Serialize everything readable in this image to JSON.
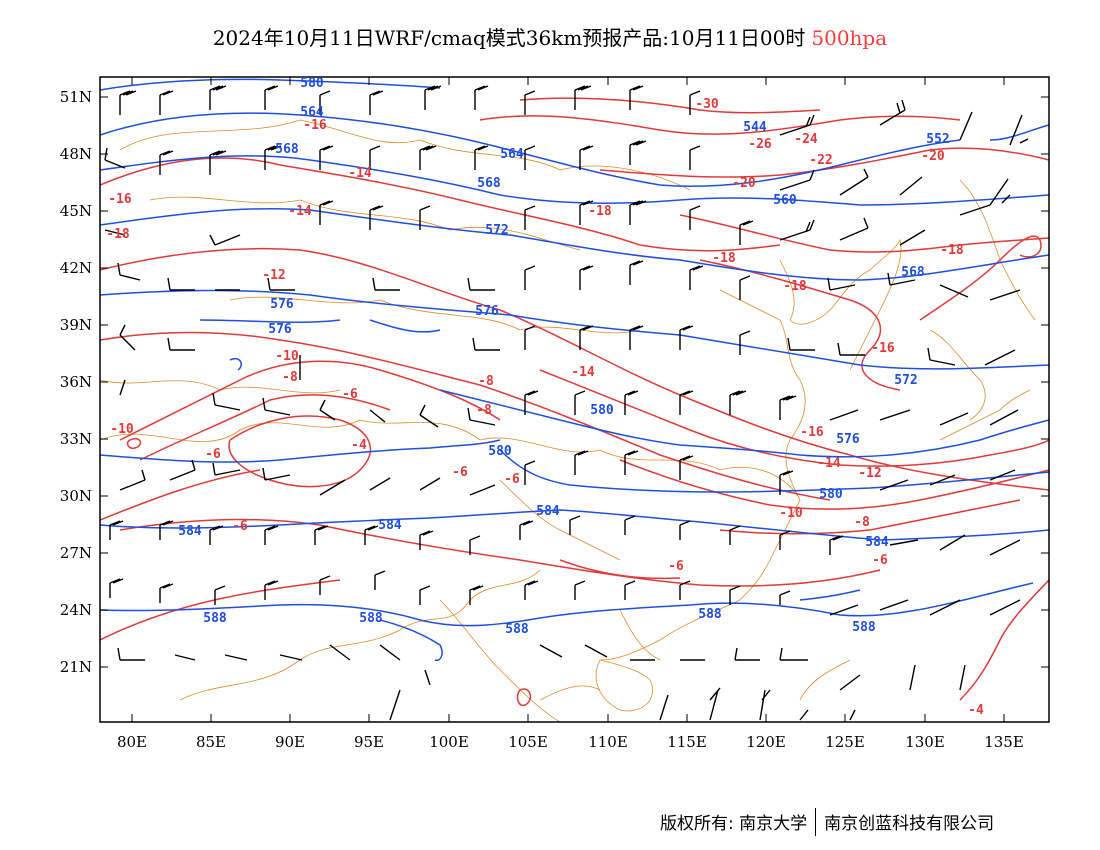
{
  "title": {
    "text": "2024年10月11日WRF/cmaq模式36km预报产品:10月11日00时",
    "level": "500hpa"
  },
  "axes": {
    "lat_labels": [
      "51N",
      "48N",
      "45N",
      "42N",
      "39N",
      "36N",
      "33N",
      "30N",
      "27N",
      "24N",
      "21N"
    ],
    "lon_labels": [
      "80E",
      "85E",
      "90E",
      "95E",
      "100E",
      "105E",
      "110E",
      "115E",
      "120E",
      "125E",
      "130E",
      "135E"
    ]
  },
  "colors": {
    "height_contour": "#1f4fe0",
    "temperature_contour": "#e23a3a",
    "coast_border": "#e08a2a",
    "wind_barb": "#000000",
    "level_text": "#ff3b3b"
  },
  "height_labels": [
    "580",
    "564",
    "568",
    "568",
    "572",
    "576",
    "576",
    "576",
    "580",
    "580",
    "584",
    "584",
    "584",
    "588",
    "588",
    "588",
    "588",
    "564",
    "544",
    "552",
    "560",
    "568",
    "572",
    "576",
    "580",
    "584",
    "588"
  ],
  "temperature_labels": [
    "-16",
    "-14",
    "-12",
    "-10",
    "-8",
    "-6",
    "-4",
    "-6",
    "-10",
    "-8",
    "-6",
    "-16",
    "-14",
    "-18",
    "-18",
    "-18",
    "-20",
    "-22",
    "-24",
    "-26",
    "-30",
    "-20",
    "-18",
    "-16",
    "-14",
    "-12",
    "-10",
    "-8",
    "-6",
    "-4",
    "-6",
    "-8",
    "-18",
    "-16",
    "-14",
    "-6",
    "-6"
  ],
  "footer": {
    "left": "版权所有: 南京大学",
    "right": "南京创蓝科技有限公司"
  }
}
